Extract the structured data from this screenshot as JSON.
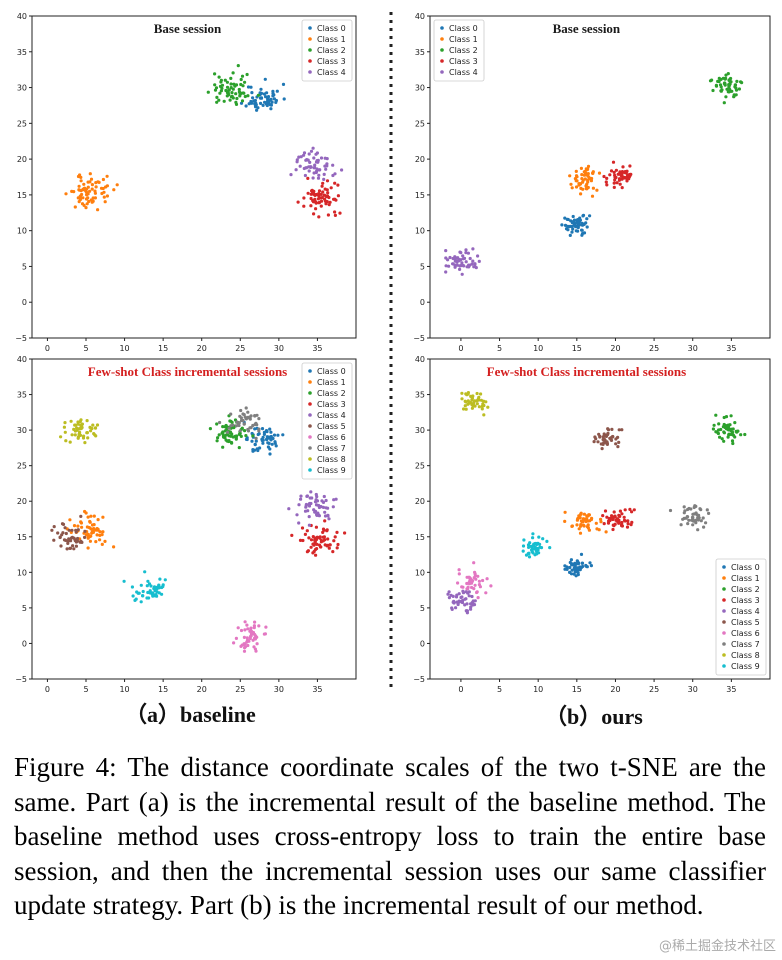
{
  "chart_data": [
    {
      "type": "scatter",
      "panel": "a-top",
      "title": "Base session",
      "title_color": "#1a1a1a",
      "xlim": [
        -2,
        40
      ],
      "ylim": [
        -5,
        40
      ],
      "xticks": [
        0,
        5,
        10,
        15,
        20,
        25,
        30,
        35
      ],
      "yticks": [
        -5,
        0,
        5,
        10,
        15,
        20,
        25,
        30,
        35,
        40
      ],
      "legend": "top-right",
      "series": [
        {
          "name": "Class 0",
          "center": [
            28,
            28.5
          ],
          "spread": [
            1.5,
            1.3
          ],
          "n": 60
        },
        {
          "name": "Class 1",
          "center": [
            5.5,
            15.5
          ],
          "spread": [
            1.8,
            1.5
          ],
          "n": 70
        },
        {
          "name": "Class 2",
          "center": [
            23.5,
            29.5
          ],
          "spread": [
            1.7,
            1.5
          ],
          "n": 65
        },
        {
          "name": "Class 3",
          "center": [
            35.5,
            14.5
          ],
          "spread": [
            1.5,
            1.5
          ],
          "n": 70
        },
        {
          "name": "Class 4",
          "center": [
            34.5,
            19.2
          ],
          "spread": [
            1.6,
            1.4
          ],
          "n": 60
        }
      ]
    },
    {
      "type": "scatter",
      "panel": "b-top",
      "title": "Base session",
      "title_color": "#1a1a1a",
      "xlim": [
        -4,
        40
      ],
      "ylim": [
        -5,
        40
      ],
      "xticks": [
        0,
        5,
        10,
        15,
        20,
        25,
        30,
        35
      ],
      "yticks": [
        -5,
        0,
        5,
        10,
        15,
        20,
        25,
        30,
        35,
        40
      ],
      "legend": "top-left",
      "series": [
        {
          "name": "Class 0",
          "center": [
            15,
            10.8
          ],
          "spread": [
            1.2,
            0.9
          ],
          "n": 55
        },
        {
          "name": "Class 1",
          "center": [
            16,
            17
          ],
          "spread": [
            1.3,
            1.1
          ],
          "n": 55
        },
        {
          "name": "Class 2",
          "center": [
            34.5,
            30
          ],
          "spread": [
            1.2,
            1.2
          ],
          "n": 55
        },
        {
          "name": "Class 3",
          "center": [
            20.5,
            17.5
          ],
          "spread": [
            1.2,
            1.1
          ],
          "n": 55
        },
        {
          "name": "Class 4",
          "center": [
            0,
            5.8
          ],
          "spread": [
            1.4,
            1.0
          ],
          "n": 55
        }
      ]
    },
    {
      "type": "scatter",
      "panel": "a-bottom",
      "title": "Few-shot Class incremental sessions",
      "title_color": "#d42020",
      "xlim": [
        -2,
        40
      ],
      "ylim": [
        -5,
        40
      ],
      "xticks": [
        0,
        5,
        10,
        15,
        20,
        25,
        30,
        35
      ],
      "yticks": [
        -5,
        0,
        5,
        10,
        15,
        20,
        25,
        30,
        35,
        40
      ],
      "legend": "top-right",
      "series": [
        {
          "name": "Class 0",
          "center": [
            28,
            28.5
          ],
          "spread": [
            1.5,
            1.2
          ],
          "n": 55
        },
        {
          "name": "Class 1",
          "center": [
            5.5,
            15.8
          ],
          "spread": [
            1.6,
            1.4
          ],
          "n": 60
        },
        {
          "name": "Class 2",
          "center": [
            23.5,
            29.5
          ],
          "spread": [
            1.6,
            1.3
          ],
          "n": 60
        },
        {
          "name": "Class 3",
          "center": [
            35.5,
            14.3
          ],
          "spread": [
            1.4,
            1.4
          ],
          "n": 60
        },
        {
          "name": "Class 4",
          "center": [
            34.5,
            19.3
          ],
          "spread": [
            1.5,
            1.3
          ],
          "n": 55
        },
        {
          "name": "Class 5",
          "center": [
            3,
            14.8
          ],
          "spread": [
            1.5,
            1.2
          ],
          "n": 45
        },
        {
          "name": "Class 6",
          "center": [
            26,
            1
          ],
          "spread": [
            1.4,
            1.5
          ],
          "n": 50
        },
        {
          "name": "Class 7",
          "center": [
            25.5,
            31
          ],
          "spread": [
            1.3,
            1.2
          ],
          "n": 45
        },
        {
          "name": "Class 8",
          "center": [
            4.5,
            30
          ],
          "spread": [
            1.5,
            1.2
          ],
          "n": 50
        },
        {
          "name": "Class 9",
          "center": [
            13,
            7.5
          ],
          "spread": [
            1.6,
            1.2
          ],
          "n": 50
        }
      ]
    },
    {
      "type": "scatter",
      "panel": "b-bottom",
      "title": "Few-shot Class incremental sessions",
      "title_color": "#d42020",
      "xlim": [
        -4,
        40
      ],
      "ylim": [
        -5,
        40
      ],
      "xticks": [
        0,
        5,
        10,
        15,
        20,
        25,
        30,
        35
      ],
      "yticks": [
        -5,
        0,
        5,
        10,
        15,
        20,
        25,
        30,
        35,
        40
      ],
      "legend": "bottom-right",
      "series": [
        {
          "name": "Class 0",
          "center": [
            15,
            10.8
          ],
          "spread": [
            1.1,
            0.9
          ],
          "n": 50
        },
        {
          "name": "Class 1",
          "center": [
            16,
            17
          ],
          "spread": [
            1.3,
            1.0
          ],
          "n": 50
        },
        {
          "name": "Class 2",
          "center": [
            34.5,
            30
          ],
          "spread": [
            1.2,
            1.1
          ],
          "n": 50
        },
        {
          "name": "Class 3",
          "center": [
            20.5,
            17.5
          ],
          "spread": [
            1.2,
            1.0
          ],
          "n": 50
        },
        {
          "name": "Class 4",
          "center": [
            0,
            5.8
          ],
          "spread": [
            1.4,
            1.0
          ],
          "n": 50
        },
        {
          "name": "Class 5",
          "center": [
            19,
            28.8
          ],
          "spread": [
            1.2,
            0.9
          ],
          "n": 45
        },
        {
          "name": "Class 6",
          "center": [
            1.5,
            8.5
          ],
          "spread": [
            1.4,
            1.2
          ],
          "n": 45
        },
        {
          "name": "Class 7",
          "center": [
            30,
            17.8
          ],
          "spread": [
            1.3,
            1.1
          ],
          "n": 45
        },
        {
          "name": "Class 8",
          "center": [
            2,
            34
          ],
          "spread": [
            1.2,
            0.9
          ],
          "n": 45
        },
        {
          "name": "Class 9",
          "center": [
            9.5,
            13.5
          ],
          "spread": [
            1.1,
            1.0
          ],
          "n": 45
        }
      ]
    }
  ],
  "class_colors": [
    "#1f77b4",
    "#ff7f0e",
    "#2ca02c",
    "#d62728",
    "#9467bd",
    "#8c564b",
    "#e377c2",
    "#7f7f7f",
    "#bcbd22",
    "#17becf"
  ],
  "labels": {
    "a": "（a）baseline",
    "b": "（b）ours"
  },
  "caption": "Figure 4: The distance coordinate scales of the two t-SNE are the same. Part (a) is the incremental result of the baseline method. The baseline method uses cross-entropy loss to train the entire base session, and then the incremental session uses our same classifier update strategy. Part (b) is the incremental result of our method.",
  "watermark": "@稀土掘金技术社区"
}
